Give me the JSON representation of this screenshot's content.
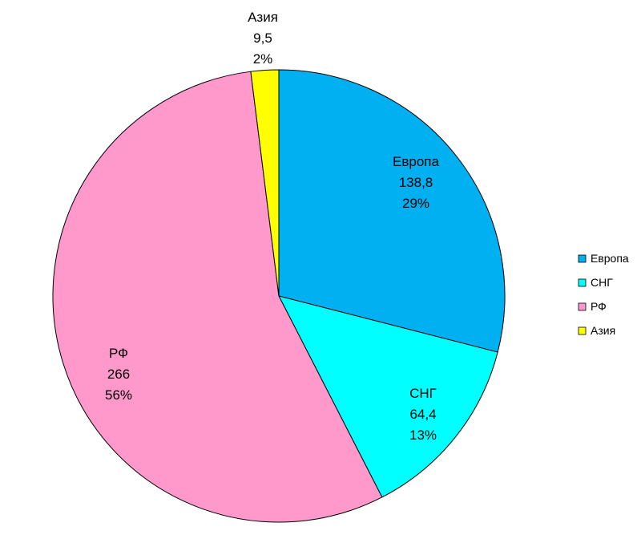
{
  "chart_data": {
    "type": "pie",
    "title": "",
    "categories": [
      "Европа",
      "СНГ",
      "РФ",
      "Азия"
    ],
    "values": [
      138.8,
      64.4,
      266,
      9.5
    ],
    "value_labels": [
      "138,8",
      "64,4",
      "266",
      "9,5"
    ],
    "percent_labels": [
      "29%",
      "13%",
      "56%",
      "2%"
    ],
    "colors": [
      "#00B0F0",
      "#00FFFF",
      "#FF99CC",
      "#FFFF00"
    ],
    "start_angle_deg": 0,
    "direction": "clockwise",
    "legend": {
      "placement": "right",
      "entries": [
        "Европа",
        "СНГ",
        "РФ",
        "Азия"
      ]
    }
  }
}
